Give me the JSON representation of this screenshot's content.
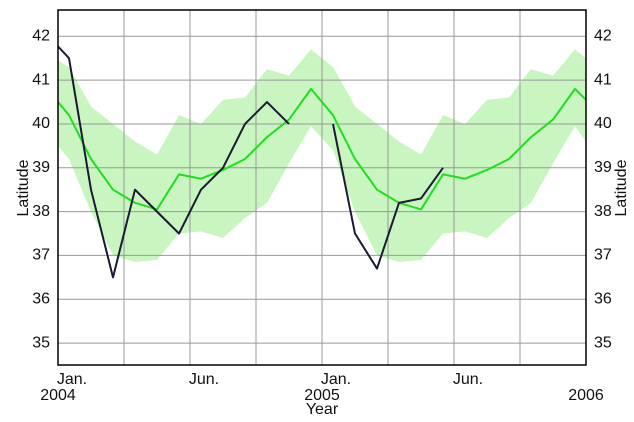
{
  "chart_data": {
    "type": "line",
    "y_label": "Latitude",
    "y2_label": "Latitude",
    "x_label": "Year",
    "x": [
      0,
      0.5,
      1.5,
      2.5,
      3.5,
      4.5,
      5.5,
      6.5,
      7.5,
      8.5,
      9.5,
      10.5,
      11.5,
      12.5,
      13.5,
      14.5,
      15.5,
      16.5,
      17.5,
      18.5,
      19.5,
      20.5,
      21.5,
      22.5,
      23.5,
      24
    ],
    "xlim": [
      0,
      24
    ],
    "xgrid": [
      0,
      3,
      6,
      9,
      12,
      15,
      18,
      21,
      24
    ],
    "xticks": [
      {
        "value": 0,
        "label": "Jan."
      },
      {
        "value": 6,
        "label": "Jun."
      },
      {
        "value": 12,
        "label": "Jan."
      },
      {
        "value": 18,
        "label": "Jun."
      }
    ],
    "xyears": [
      {
        "value": 0,
        "label": "2004"
      },
      {
        "value": 12,
        "label": "2005"
      },
      {
        "value": 24,
        "label": "2006"
      }
    ],
    "ylim": [
      34.5,
      42.6
    ],
    "yticks": [
      35,
      36,
      37,
      38,
      39,
      40,
      41,
      42
    ],
    "grid": true,
    "band": {
      "color": "#c8f5c0",
      "upper": [
        41.45,
        41.3,
        40.4,
        40.0,
        39.6,
        39.3,
        40.2,
        40.0,
        40.55,
        40.6,
        41.25,
        41.1,
        41.7,
        41.3,
        40.4,
        40.0,
        39.6,
        39.3,
        40.2,
        40.0,
        40.55,
        40.6,
        41.25,
        41.1,
        41.7,
        41.5
      ],
      "lower": [
        39.5,
        39.2,
        38.0,
        37.0,
        36.85,
        36.9,
        37.5,
        37.55,
        37.4,
        37.85,
        38.2,
        39.1,
        39.95,
        39.4,
        38.0,
        37.0,
        36.85,
        36.9,
        37.5,
        37.55,
        37.4,
        37.85,
        38.2,
        39.1,
        39.95,
        39.6
      ]
    },
    "series": [
      {
        "color": "#22dd22",
        "values": [
          40.5,
          40.2,
          39.2,
          38.5,
          38.2,
          38.05,
          38.85,
          38.75,
          38.95,
          39.2,
          39.7,
          40.1,
          40.8,
          40.2,
          39.2,
          38.5,
          38.2,
          38.05,
          38.85,
          38.75,
          38.95,
          39.2,
          39.7,
          40.1,
          40.8,
          40.55
        ]
      },
      {
        "color": "#1a1a33",
        "values": [
          41.77,
          41.5,
          38.5,
          36.5,
          38.5,
          38.0,
          37.5,
          38.5,
          39.0,
          40.0,
          40.5,
          40.0,
          null,
          40.0,
          37.5,
          36.7,
          38.2,
          38.3,
          39.0,
          null,
          null,
          null,
          null,
          null,
          null,
          null
        ]
      }
    ]
  }
}
